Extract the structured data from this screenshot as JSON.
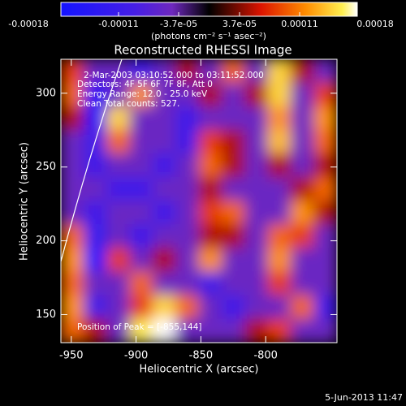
{
  "chart_data": {
    "type": "heatmap",
    "title": "Reconstructed RHESSI Image",
    "colorbar_label": "(photons cm⁻² s⁻¹ asec⁻²)",
    "colorbar_lim": [
      -0.00018,
      0.00018
    ],
    "colorbar_ticks": [
      {
        "value": -0.00018,
        "label": "-0.00018"
      },
      {
        "value": -0.00011,
        "label": "-0.00011"
      },
      {
        "value": -3.7e-05,
        "label": "-3.7e-05"
      },
      {
        "value": 3.7e-05,
        "label": "3.7e-05"
      },
      {
        "value": 0.00011,
        "label": "0.00011"
      },
      {
        "value": 0.00018,
        "label": "0.00018"
      }
    ],
    "x_label": "Heliocentric X (arcsec)",
    "y_label": "Heliocentric Y (arcsec)",
    "xlim": [
      -958,
      -745
    ],
    "ylim": [
      131,
      323
    ],
    "xticks": [
      -950,
      -900,
      -850,
      -800
    ],
    "yticks": [
      150,
      200,
      250,
      300
    ],
    "annotations": [
      "2-Mar-2003 03:10:52.000 to 03:11:52.000",
      "Detectors: 4F 5F 6F 7F 8F, Att 0",
      "Energy Range: 12.0 - 25.0 keV",
      "Clean    Total counts: 527."
    ],
    "peak_label": "Position of Peak = [-855,144]",
    "timestamp": "5-Jun-2013 11:47",
    "values": [
      [
        8e-05,
        -5e-05,
        -5e-05,
        -0.0001,
        -5e-05,
        5e-05,
        -5e-05,
        0.0001,
        -5e-05,
        0.00015,
        5e-05,
        -5e-05
      ],
      [
        0.0001,
        -0.00015,
        -5e-05,
        0.00012,
        -5e-05,
        -5e-05,
        5e-05,
        -5e-05,
        5e-05,
        0.00015,
        -5e-05,
        8e-05
      ],
      [
        5e-05,
        -0.00015,
        0.00015,
        -5e-05,
        -5e-05,
        -0.0001,
        -5e-05,
        -5e-05,
        -5e-05,
        0.00012,
        -5e-05,
        0.00012
      ],
      [
        -5e-05,
        -0.0001,
        0.0001,
        -5e-05,
        -5e-05,
        -0.0001,
        8e-05,
        5e-05,
        -5e-05,
        0.00014,
        -5e-05,
        0.0001
      ],
      [
        -5e-05,
        -0.0001,
        -5e-05,
        -5e-05,
        -0.0001,
        -5e-05,
        0.0001,
        5e-05,
        -5e-05,
        5e-05,
        -5e-05,
        5e-05
      ],
      [
        -5e-05,
        -5e-05,
        -0.0001,
        -0.0001,
        -5e-05,
        -5e-05,
        5e-05,
        -5e-05,
        -5e-05,
        -5e-05,
        5e-05,
        0.0001
      ],
      [
        -5e-05,
        -0.0001,
        -5e-05,
        -5e-05,
        -0.0001,
        -5e-05,
        8e-05,
        0.0001,
        -5e-05,
        -5e-05,
        0.00012,
        5e-05
      ],
      [
        0.0001,
        -0.00012,
        -5e-05,
        -0.0001,
        -5e-05,
        -5e-05,
        5e-05,
        5e-05,
        -5e-05,
        0.0001,
        8e-05,
        -5e-05
      ],
      [
        0.00012,
        -0.00018,
        8e-05,
        -5e-05,
        5e-05,
        -5e-05,
        0.00012,
        -5e-05,
        -5e-05,
        0.00012,
        -5e-05,
        -5e-05
      ],
      [
        0.0001,
        -5e-05,
        -5e-05,
        0.0001,
        -5e-05,
        -5e-05,
        -0.0001,
        -5e-05,
        -5e-05,
        8e-05,
        -5e-05,
        -5e-05
      ],
      [
        0.00012,
        -0.0001,
        -5e-05,
        8e-05,
        0.00015,
        0.0001,
        -5e-05,
        -0.0001,
        -5e-05,
        -5e-05,
        0.0001,
        -0.0001
      ],
      [
        0.0001,
        5e-05,
        -5e-05,
        0.00016,
        0.00018,
        -5e-05,
        -5e-05,
        -5e-05,
        5e-05,
        8e-05,
        -5e-05,
        -5e-05
      ]
    ]
  }
}
